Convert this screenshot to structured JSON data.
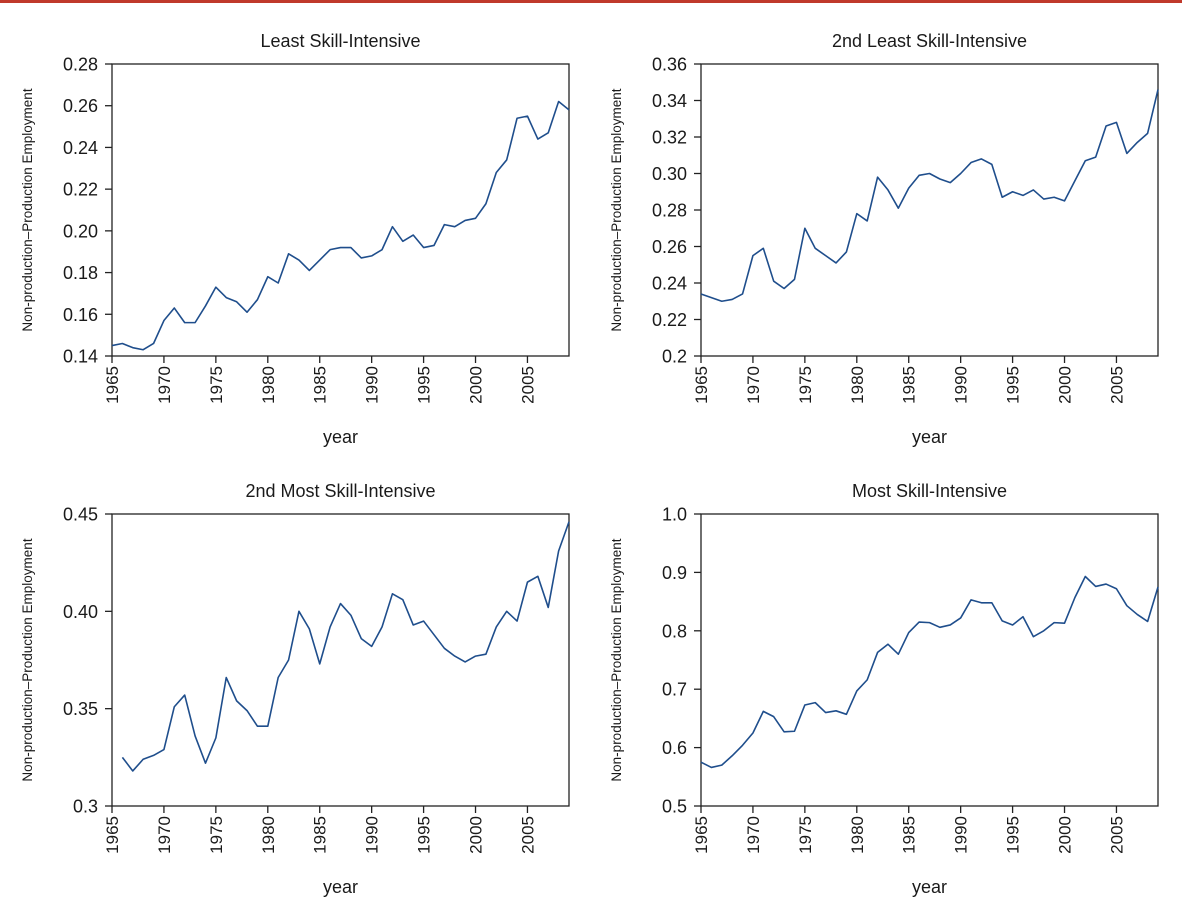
{
  "colors": {
    "series": "#1f4e8c",
    "top_rule": "#c0392b",
    "axis": "#222222"
  },
  "chart_data": [
    {
      "type": "line",
      "title": "Least Skill-Intensive",
      "xlabel": "year",
      "ylabel": "Non-production–Production Employment",
      "xlim": [
        1965,
        2009
      ],
      "ylim": [
        0.14,
        0.28
      ],
      "xticks": [
        1965,
        1970,
        1975,
        1980,
        1985,
        1990,
        1995,
        2000,
        2005
      ],
      "yticks": [
        0.14,
        0.16,
        0.18,
        0.2,
        0.22,
        0.24,
        0.26,
        0.28
      ],
      "ytick_labels": [
        "0.14",
        "0.16",
        "0.18",
        "0.20",
        "0.22",
        "0.24",
        "0.26",
        "0.28"
      ],
      "grid": false,
      "series": [
        {
          "x": [
            1965,
            1966,
            1967,
            1968,
            1969,
            1970,
            1971,
            1972,
            1973,
            1974,
            1975,
            1976,
            1977,
            1978,
            1979,
            1980,
            1981,
            1982,
            1983,
            1984,
            1985,
            1986,
            1987,
            1988,
            1989,
            1990,
            1991,
            1992,
            1993,
            1994,
            1995,
            1996,
            1997,
            1998,
            1999,
            2000,
            2001,
            2002,
            2003,
            2004,
            2005,
            2006,
            2007,
            2008,
            2009
          ],
          "values": [
            0.145,
            0.146,
            0.144,
            0.143,
            0.146,
            0.157,
            0.163,
            0.156,
            0.156,
            0.164,
            0.173,
            0.168,
            0.166,
            0.161,
            0.167,
            0.178,
            0.175,
            0.189,
            0.186,
            0.181,
            0.186,
            0.191,
            0.192,
            0.192,
            0.187,
            0.188,
            0.191,
            0.202,
            0.195,
            0.198,
            0.192,
            0.193,
            0.203,
            0.202,
            0.205,
            0.206,
            0.213,
            0.228,
            0.234,
            0.254,
            0.255,
            0.244,
            0.247,
            0.262,
            0.258
          ]
        }
      ]
    },
    {
      "type": "line",
      "title": "2nd Least Skill-Intensive",
      "xlabel": "year",
      "ylabel": "Non-production–Production Employment",
      "xlim": [
        1965,
        2009
      ],
      "ylim": [
        0.2,
        0.36
      ],
      "xticks": [
        1965,
        1970,
        1975,
        1980,
        1985,
        1990,
        1995,
        2000,
        2005
      ],
      "yticks": [
        0.2,
        0.22,
        0.24,
        0.26,
        0.28,
        0.3,
        0.32,
        0.34,
        0.36
      ],
      "ytick_labels": [
        "0.2",
        "0.22",
        "0.24",
        "0.26",
        "0.28",
        "0.30",
        "0.32",
        "0.34",
        "0.36"
      ],
      "grid": false,
      "series": [
        {
          "x": [
            1965,
            1966,
            1967,
            1968,
            1969,
            1970,
            1971,
            1972,
            1973,
            1974,
            1975,
            1976,
            1977,
            1978,
            1979,
            1980,
            1981,
            1982,
            1983,
            1984,
            1985,
            1986,
            1987,
            1988,
            1989,
            1990,
            1991,
            1992,
            1993,
            1994,
            1995,
            1996,
            1997,
            1998,
            1999,
            2000,
            2001,
            2002,
            2003,
            2004,
            2005,
            2006,
            2007,
            2008,
            2009
          ],
          "values": [
            0.234,
            0.232,
            0.23,
            0.231,
            0.234,
            0.255,
            0.259,
            0.241,
            0.237,
            0.242,
            0.27,
            0.259,
            0.255,
            0.251,
            0.257,
            0.278,
            0.274,
            0.298,
            0.291,
            0.281,
            0.292,
            0.299,
            0.3,
            0.297,
            0.295,
            0.3,
            0.306,
            0.308,
            0.305,
            0.287,
            0.29,
            0.288,
            0.291,
            0.286,
            0.287,
            0.285,
            0.296,
            0.307,
            0.309,
            0.326,
            0.328,
            0.311,
            0.317,
            0.322,
            0.346
          ]
        }
      ]
    },
    {
      "type": "line",
      "title": "2nd Most Skill-Intensive",
      "xlabel": "year",
      "ylabel": "Non-production–Production Employment",
      "xlim": [
        1965,
        2009
      ],
      "ylim": [
        0.3,
        0.45
      ],
      "xticks": [
        1965,
        1970,
        1975,
        1980,
        1985,
        1990,
        1995,
        2000,
        2005
      ],
      "yticks": [
        0.3,
        0.35,
        0.4,
        0.45
      ],
      "ytick_labels": [
        "0.3",
        "0.35",
        "0.40",
        "0.45"
      ],
      "grid": false,
      "series": [
        {
          "x": [
            1966,
            1967,
            1968,
            1969,
            1970,
            1971,
            1972,
            1973,
            1974,
            1975,
            1976,
            1977,
            1978,
            1979,
            1980,
            1981,
            1982,
            1983,
            1984,
            1985,
            1986,
            1987,
            1988,
            1989,
            1990,
            1991,
            1992,
            1993,
            1994,
            1995,
            1996,
            1997,
            1998,
            1999,
            2000,
            2001,
            2002,
            2003,
            2004,
            2005,
            2006,
            2007,
            2008,
            2009
          ],
          "values": [
            0.325,
            0.318,
            0.324,
            0.326,
            0.329,
            0.351,
            0.357,
            0.336,
            0.322,
            0.335,
            0.366,
            0.354,
            0.349,
            0.341,
            0.341,
            0.366,
            0.375,
            0.4,
            0.391,
            0.373,
            0.392,
            0.404,
            0.398,
            0.386,
            0.382,
            0.392,
            0.409,
            0.406,
            0.393,
            0.395,
            0.388,
            0.381,
            0.377,
            0.374,
            0.377,
            0.378,
            0.392,
            0.4,
            0.395,
            0.415,
            0.418,
            0.402,
            0.431,
            0.446
          ]
        }
      ]
    },
    {
      "type": "line",
      "title": "Most Skill-Intensive",
      "xlabel": "year",
      "ylabel": "Non-production–Production Employment",
      "xlim": [
        1965,
        2009
      ],
      "ylim": [
        0.5,
        1.0
      ],
      "xticks": [
        1965,
        1970,
        1975,
        1980,
        1985,
        1990,
        1995,
        2000,
        2005
      ],
      "yticks": [
        0.5,
        0.6,
        0.7,
        0.8,
        0.9,
        1.0
      ],
      "ytick_labels": [
        "0.5",
        "0.6",
        "0.7",
        "0.8",
        "0.9",
        "1.0"
      ],
      "grid": false,
      "series": [
        {
          "x": [
            1965,
            1966,
            1967,
            1968,
            1969,
            1970,
            1971,
            1972,
            1973,
            1974,
            1975,
            1976,
            1977,
            1978,
            1979,
            1980,
            1981,
            1982,
            1983,
            1984,
            1985,
            1986,
            1987,
            1988,
            1989,
            1990,
            1991,
            1992,
            1993,
            1994,
            1995,
            1996,
            1997,
            1998,
            1999,
            2000,
            2001,
            2002,
            2003,
            2004,
            2005,
            2006,
            2007,
            2008,
            2009
          ],
          "values": [
            0.575,
            0.566,
            0.57,
            0.586,
            0.604,
            0.625,
            0.662,
            0.653,
            0.627,
            0.628,
            0.673,
            0.677,
            0.66,
            0.663,
            0.657,
            0.697,
            0.716,
            0.763,
            0.777,
            0.76,
            0.797,
            0.815,
            0.814,
            0.806,
            0.81,
            0.822,
            0.853,
            0.848,
            0.848,
            0.817,
            0.81,
            0.824,
            0.79,
            0.8,
            0.814,
            0.813,
            0.857,
            0.893,
            0.876,
            0.88,
            0.872,
            0.843,
            0.828,
            0.816,
            0.875
          ]
        }
      ]
    }
  ]
}
